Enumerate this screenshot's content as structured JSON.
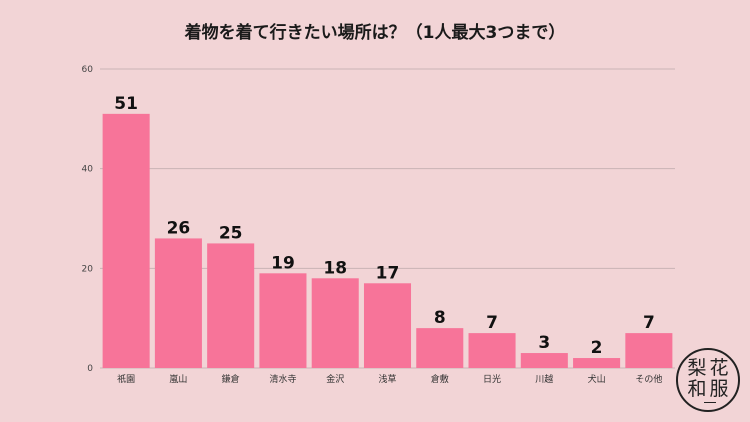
{
  "title": "着物を着て行きたい場所は？（1人最大3つまで）",
  "logo": {
    "chars": [
      "梨",
      "花",
      "和",
      "服"
    ]
  },
  "colors": {
    "bar": "#f77499",
    "grid": "#c9b3b5",
    "background": "#f2d4d6"
  },
  "chart_data": {
    "type": "bar",
    "title": "着物を着て行きたい場所は？（1人最大3つまで）",
    "xlabel": "",
    "ylabel": "",
    "categories": [
      "祇園",
      "嵐山",
      "鎌倉",
      "清水寺",
      "金沢",
      "浅草",
      "倉敷",
      "日光",
      "川越",
      "犬山",
      "その他"
    ],
    "values": [
      51,
      26,
      25,
      19,
      18,
      17,
      8,
      7,
      3,
      2,
      7
    ],
    "ylim": [
      0,
      60
    ],
    "yticks": [
      "0",
      "20",
      "40",
      "60"
    ],
    "grid": true,
    "legend": "none"
  }
}
